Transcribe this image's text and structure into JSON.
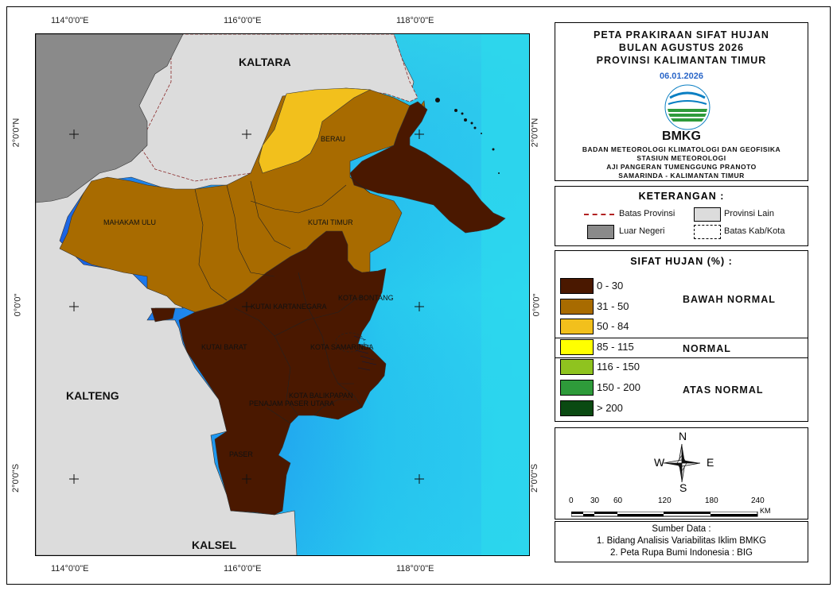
{
  "coords": {
    "top": [
      "114°0'0\"E",
      "116°0'0\"E",
      "118°0'0\"E"
    ],
    "bottom": [
      "114°0'0\"E",
      "116°0'0\"E",
      "118°0'0\"E"
    ],
    "left": [
      "2°0'0\"N",
      "0°0'0\"",
      "2°0'0\"S"
    ],
    "right": [
      "2°0'0\"N",
      "0°0'0\"",
      "2°0'0\"S"
    ]
  },
  "map_labels": {
    "kaltara": "KALTARA",
    "kalteng": "KALTENG",
    "kalsel": "KALSEL",
    "berau": "BERAU",
    "mahakam_ulu": "MAHAKAM ULU",
    "kutai_timur": "KUTAI TIMUR",
    "kota_bontang": "KOTA BONTANG",
    "kutai_kartanegara": "KUTAI KARTANEGARA",
    "kutai_barat": "KUTAI BARAT",
    "kota_samarinda": "KOTA SAMARINDA",
    "kota_balikpapan": "KOTA BALIKPAPAN",
    "penajam": "PENAJAM PASER UTARA",
    "paser": "PASER"
  },
  "title": {
    "line1": "PETA PRAKIRAAN SIFAT HUJAN",
    "line2": "BULAN AGUSTUS 2026",
    "line3": "PROVINSI KALIMANTAN TIMUR",
    "date": "06.01.2026",
    "logo_text": "BMKG",
    "org1": "BADAN METEOROLOGI KLIMATOLOGI DAN GEOFISIKA",
    "org2": "STASIUN METEOROLOGI",
    "org3": "AJI PANGERAN TUMENGGUNG PRANOTO",
    "org4": "SAMARINDA - KALIMANTAN TIMUR"
  },
  "keterangan": {
    "heading": "KETERANGAN :",
    "batas_provinsi": "Batas Provinsi",
    "provinsi_lain": "Provinsi Lain",
    "luar_negeri": "Luar Negeri",
    "batas_kabkota": "Batas Kab/Kota"
  },
  "sifat_hujan": {
    "heading": "SIFAT HUJAN (%) :",
    "classes": [
      {
        "label": "0 - 30",
        "color": "#4a1800"
      },
      {
        "label": "31 - 50",
        "color": "#a86b00"
      },
      {
        "label": "50 - 84",
        "color": "#f2c01c"
      },
      {
        "label": "85 - 115",
        "color": "#ffff00"
      },
      {
        "label": "116 - 150",
        "color": "#8fc31f"
      },
      {
        "label": "150 - 200",
        "color": "#2e9b3a"
      },
      {
        "label": "> 200",
        "color": "#0a4a12"
      }
    ],
    "cat_bawah": "BAWAH NORMAL",
    "cat_normal": "NORMAL",
    "cat_atas": "ATAS NORMAL"
  },
  "compass": {
    "n": "N",
    "s": "S",
    "e": "E",
    "w": "W"
  },
  "scale": {
    "ticks": [
      "0",
      "30",
      "60",
      "120",
      "180",
      "240"
    ],
    "unit": "KM"
  },
  "source": {
    "heading": "Sumber Data :",
    "line1": "1. Bidang Analisis Variabilitas Iklim BMKG",
    "line2": "2. Peta Rupa Bumi Indonesia : BIG"
  },
  "colors": {
    "luar_negeri": "#8a8a8a",
    "provinsi_lain": "#dcdcdc",
    "sea_deep": "#1a4fe0",
    "sea_shallow": "#2fd6f0"
  }
}
